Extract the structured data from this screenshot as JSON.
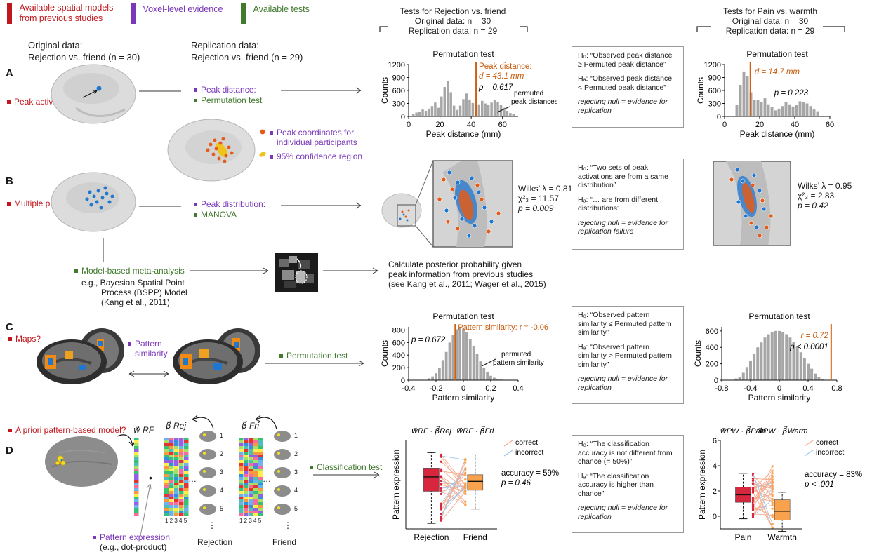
{
  "legend": {
    "spatial": "Available spatial models from previous studies",
    "spatial_line2": "from previous studies",
    "voxel": "Voxel-level evidence",
    "tests": "Available tests",
    "colors": {
      "spatial": "#c0161c",
      "voxel": "#7a37b8",
      "tests": "#3f7a2d"
    }
  },
  "header": {
    "original_title": "Original data:",
    "original_sub": "Rejection vs. friend (n = 30)",
    "replication_title": "Replication data:",
    "replication_sub": "Rejection vs. friend (n = 29)",
    "rf_title": "Tests for Rejection vs. friend",
    "rf_orig": "Original data: n = 30",
    "rf_rep": "Replication data: n = 29",
    "pw_title": "Tests for Pain vs. warmth",
    "pw_orig": "Original data: n = 30",
    "pw_rep": "Replication data: n = 29"
  },
  "rowA": {
    "letter": "A",
    "question": "Peak activation?",
    "evidence": "Peak distance:",
    "test": "Permutation test",
    "legend_peaks": "Peak coordinates for",
    "legend_peaks2": "individual participants",
    "legend_ci": "95% confidence region",
    "box": {
      "h0": "H₀: “Observed peak distance ≥ Permuted peak distance”",
      "ha": "Hₐ: “Observed peak distance < Permuted peak distance”",
      "note": "rejecting null = evidence for replication"
    }
  },
  "rowB": {
    "letter": "B",
    "question": "Multiple peaks?",
    "evidence": "Peak distribution:",
    "test": "MANOVA",
    "meta": "Model-based meta-analysis",
    "meta_eg1": "e.g., Bayesian Spatial Point",
    "meta_eg2": "Process (BSPP) Model",
    "meta_eg3": "(Kang et al., 2011)",
    "posterior1": "Calculate posterior probability given",
    "posterior2": "peak information from previous studies",
    "posterior3": "(see Kang et al., 2011; Wager et al., 2015)",
    "stats_rf": [
      "Wilks’ λ = 0.81",
      "χ²₃ = 11.57",
      "p = 0.009"
    ],
    "stats_pw": [
      "Wilks’ λ = 0.95",
      "χ²₃ = 2.83",
      "p = 0.42"
    ],
    "box": {
      "h0": "H₀: “Two sets of peak activations are from a same distribution”",
      "ha": "Hₐ: “… are from different distributions”",
      "note": "rejecting null = evidence for replication failure"
    }
  },
  "rowC": {
    "letter": "C",
    "question": "Maps?",
    "evidence": "Pattern similarity",
    "test": "Permutation test",
    "box": {
      "h0": "H₀: “Observed pattern similarity ≤ Permuted pattern similarity”",
      "ha": "Hₐ: “Observed pattern similarity > Permuted pattern similarity”",
      "note": "rejecting null = evidence for replication"
    }
  },
  "rowD": {
    "letter": "D",
    "question": "A priori pattern-based model?",
    "w_rf": "w⃗ RF",
    "beta_rej": "β⃗ Rej",
    "beta_fri": "β⃗ Fri",
    "expression": "Pattern expression",
    "expression_eg": "(e.g., dot-product)",
    "rejection": "Rejection",
    "friend": "Friend",
    "test": "Classification test",
    "cols_label": "1 2 3 4 5",
    "stack_numbers": [
      "1",
      "2",
      "3",
      "4",
      "5"
    ],
    "box": {
      "h0": "H₀: “The classification accuracy is not different from chance (= 50%)”",
      "ha": "Hₐ: “The classification accuracy is higher than chance”",
      "note": "rejecting null = evidence for replication"
    }
  },
  "chart_data": [
    {
      "id": "A-rf",
      "type": "bar",
      "title": "Permutation test",
      "xlabel": "Peak distance (mm)",
      "ylabel": "Counts",
      "xlim": [
        0,
        70
      ],
      "ylim": [
        0,
        1200
      ],
      "xticks": [
        0,
        20,
        40,
        60
      ],
      "yticks": [
        0,
        300,
        600,
        900,
        1200
      ],
      "bin_centers": [
        3,
        5,
        7,
        9,
        11,
        13,
        15,
        17,
        19,
        21,
        23,
        25,
        27,
        29,
        31,
        33,
        35,
        37,
        39,
        41,
        43,
        45,
        47,
        49,
        51,
        53,
        55,
        57,
        59,
        61,
        63,
        65,
        67
      ],
      "values": [
        60,
        90,
        110,
        160,
        130,
        180,
        240,
        320,
        200,
        460,
        680,
        820,
        560,
        250,
        150,
        250,
        400,
        530,
        390,
        310,
        260,
        280,
        360,
        300,
        260,
        320,
        380,
        330,
        260,
        200,
        130,
        80,
        50
      ],
      "observed": 43.1,
      "observed_label": "Peak distance:",
      "observed_label2": "d = 43.1 mm",
      "p_label": "p = 0.617",
      "annotation": "permuted peak distances"
    },
    {
      "id": "A-pw",
      "type": "bar",
      "title": "Permutation test",
      "xlabel": "Peak distance (mm)",
      "ylabel": "Counts",
      "xlim": [
        0,
        60
      ],
      "ylim": [
        0,
        1200
      ],
      "xticks": [
        0,
        20,
        40,
        60
      ],
      "yticks": [
        0,
        300,
        600,
        900,
        1200
      ],
      "bin_centers": [
        7,
        9,
        11,
        13,
        15,
        17,
        19,
        21,
        23,
        25,
        27,
        29,
        31,
        33,
        35,
        37,
        39,
        41,
        43,
        45,
        47,
        49,
        51,
        53
      ],
      "values": [
        260,
        730,
        1040,
        930,
        560,
        380,
        380,
        340,
        420,
        280,
        220,
        140,
        180,
        240,
        330,
        280,
        230,
        260,
        350,
        330,
        300,
        240,
        160,
        120
      ],
      "observed": 14.7,
      "observed_label": "d = 14.7 mm",
      "p_label": "p = 0.223"
    },
    {
      "id": "C-rf",
      "type": "bar",
      "title": "Permutation test",
      "xlabel": "Pattern similarity",
      "ylabel": "Counts",
      "xlim": [
        -0.4,
        0.4
      ],
      "ylim": [
        0,
        850
      ],
      "xticks": [
        -0.4,
        -0.2,
        0,
        0.2,
        0.4
      ],
      "yticks": [
        0,
        200,
        400,
        600,
        800
      ],
      "bin_centers": [
        -0.25,
        -0.225,
        -0.2,
        -0.175,
        -0.15,
        -0.125,
        -0.1,
        -0.075,
        -0.05,
        -0.025,
        0.0,
        0.025,
        0.05,
        0.075,
        0.1,
        0.125,
        0.15,
        0.175,
        0.2,
        0.225,
        0.25,
        0.275
      ],
      "values": [
        30,
        60,
        110,
        200,
        320,
        450,
        600,
        720,
        810,
        840,
        820,
        760,
        660,
        540,
        420,
        300,
        200,
        130,
        70,
        40,
        20,
        10
      ],
      "observed": -0.06,
      "observed_label": "Pattern similarity: r = -0.06",
      "p_label": "p = 0.672",
      "annotation": "permuted pattern similarity"
    },
    {
      "id": "C-pw",
      "type": "bar",
      "title": "Permutation test",
      "xlabel": "Pattern similarity",
      "ylabel": "Counts",
      "xlim": [
        -0.8,
        0.8
      ],
      "ylim": [
        0,
        650
      ],
      "xticks": [
        -0.8,
        -0.4,
        0,
        0.4,
        0.8
      ],
      "yticks": [
        0,
        200,
        400,
        600
      ],
      "bin_centers": [
        -0.6,
        -0.55,
        -0.5,
        -0.45,
        -0.4,
        -0.35,
        -0.3,
        -0.25,
        -0.2,
        -0.15,
        -0.1,
        -0.05,
        0,
        0.05,
        0.1,
        0.15,
        0.2,
        0.25,
        0.3,
        0.35,
        0.4,
        0.45,
        0.5,
        0.55,
        0.6
      ],
      "values": [
        20,
        40,
        90,
        160,
        240,
        320,
        400,
        460,
        520,
        560,
        590,
        600,
        600,
        590,
        560,
        520,
        470,
        410,
        340,
        270,
        200,
        140,
        80,
        40,
        15
      ],
      "observed": 0.72,
      "observed_label": "r = 0.72",
      "p_label": "p < 0.0001"
    },
    {
      "id": "D-rf",
      "type": "box",
      "ylabel": "Pattern expression",
      "categories": [
        "Rejection",
        "Friend"
      ],
      "cat_labels": [
        "w⃗RF · β⃗Rej",
        "w⃗RF · β⃗Fri"
      ],
      "ylim": [
        -4,
        4
      ],
      "boxes": [
        {
          "q1": -0.6,
          "median": 0.7,
          "q3": 1.5,
          "whisker_low": -3.5,
          "whisker_high": 2.9,
          "color": "#d7263d"
        },
        {
          "q1": -0.5,
          "median": 0.3,
          "q3": 0.9,
          "whisker_low": -2.2,
          "whisker_high": 2.7,
          "color": "#f9a24d"
        }
      ],
      "legend": [
        "correct",
        "incorrect"
      ],
      "accuracy": "accuracy = 59%",
      "p_label": "p = 0.46"
    },
    {
      "id": "D-pw",
      "type": "box",
      "ylabel": "Pattern expression",
      "categories": [
        "Pain",
        "Warmth"
      ],
      "cat_labels": [
        "w⃗PW · β⃗Pain",
        "w⃗PW · β⃗Warm"
      ],
      "ylim": [
        -1,
        6
      ],
      "yticks": [
        0,
        2,
        4,
        6
      ],
      "boxes": [
        {
          "q1": 1.1,
          "median": 1.7,
          "q3": 2.3,
          "whisker_low": -0.2,
          "whisker_high": 3.4,
          "color": "#d7263d"
        },
        {
          "q1": -0.3,
          "median": 0.4,
          "q3": 1.3,
          "whisker_low": -1.2,
          "whisker_high": 1.9,
          "color": "#f9a24d"
        }
      ],
      "legend": [
        "correct",
        "incorrect"
      ],
      "accuracy": "accuracy = 83%",
      "p_label": "p < .001"
    }
  ]
}
